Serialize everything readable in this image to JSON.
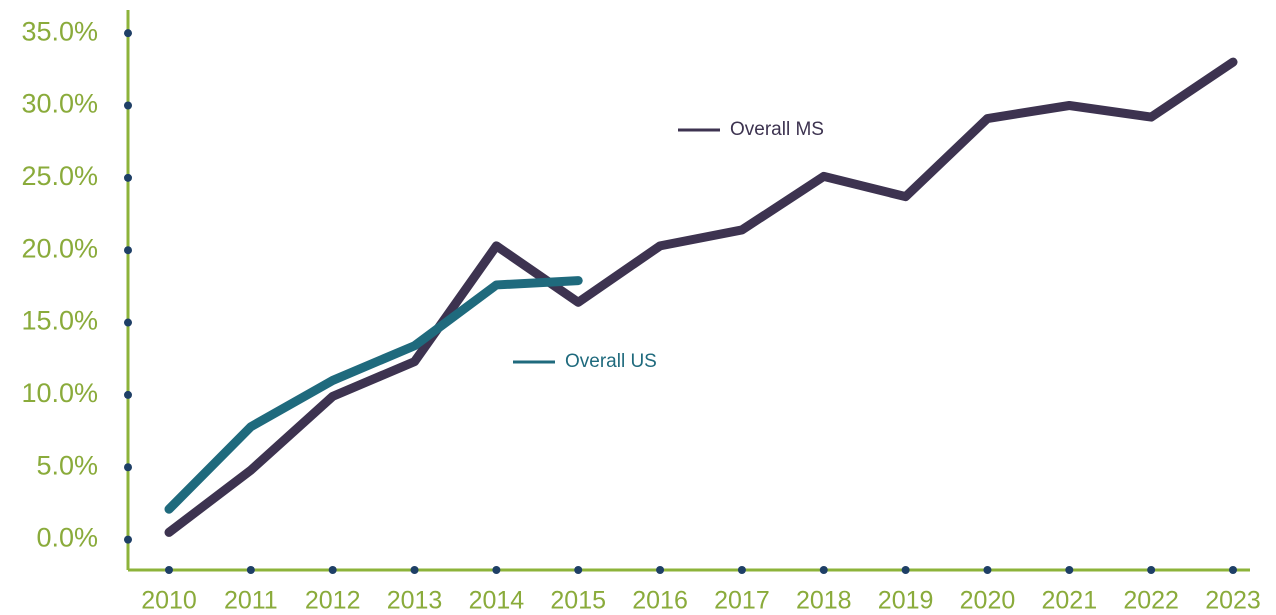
{
  "chart_data": {
    "type": "line",
    "categories": [
      "2010",
      "2011",
      "2012",
      "2013",
      "2014",
      "2015",
      "2016",
      "2017",
      "2018",
      "2019",
      "2020",
      "2021",
      "2022",
      "2023"
    ],
    "series": [
      {
        "name": "Overall MS",
        "color": "#3d3350",
        "values": [
          0.5,
          4.8,
          9.9,
          12.3,
          20.3,
          16.4,
          20.3,
          21.4,
          25.1,
          23.7,
          29.1,
          30.0,
          29.2,
          33.0
        ]
      },
      {
        "name": "Overall US",
        "color": "#1f6a7d",
        "values": [
          2.1,
          7.8,
          11.0,
          13.4,
          17.6,
          17.9,
          null,
          null,
          null,
          null,
          null,
          null,
          null,
          null
        ]
      }
    ],
    "ylim": [
      -2.1,
      36.6
    ],
    "yticks": [
      {
        "value": 0,
        "label": "0.0%"
      },
      {
        "value": 5,
        "label": "5.0%"
      },
      {
        "value": 10,
        "label": "10.0%"
      },
      {
        "value": 15,
        "label": "15.0%"
      },
      {
        "value": 20,
        "label": "20.0%"
      },
      {
        "value": 25,
        "label": "25.0%"
      },
      {
        "value": 30,
        "label": "30.0%"
      },
      {
        "value": 35,
        "label": "35.0%"
      }
    ],
    "axis_color": "#8db33a",
    "tick_dot_color": "#1e3f66"
  }
}
